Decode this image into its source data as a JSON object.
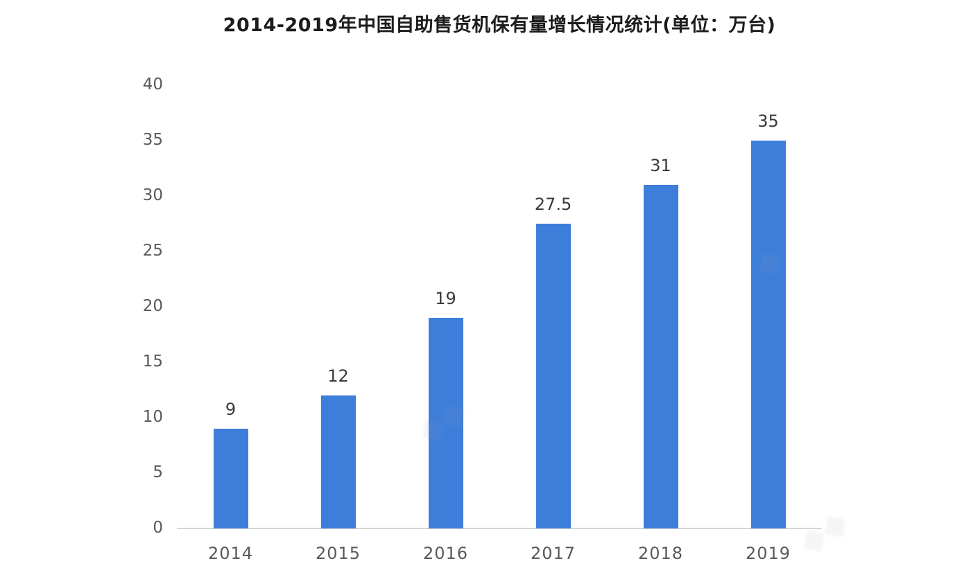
{
  "chart_data": {
    "type": "bar",
    "title": "2014-2019年中国自助售货机保有量增长情况统计(单位：万台)",
    "categories": [
      "2014",
      "2015",
      "2016",
      "2017",
      "2018",
      "2019"
    ],
    "values": [
      9,
      12,
      19,
      27.5,
      31,
      35
    ],
    "value_labels": [
      "9",
      "12",
      "19",
      "27.5",
      "31",
      "35"
    ],
    "series_name": "自助售货机保有量",
    "xlabel": "",
    "ylabel": "",
    "unit": "万台",
    "y_ticks": [
      0,
      5,
      10,
      15,
      20,
      25,
      30,
      35,
      40
    ],
    "ylim": [
      0,
      40
    ],
    "grid": false,
    "legend_position": "none",
    "colors": {
      "bar": "#3e7edb",
      "title_text": "#1c1c1c",
      "tick_label": "#595959",
      "value_label": "#3a3a3a",
      "axis_line": "#d6d6d6",
      "background": "#ffffff"
    }
  }
}
